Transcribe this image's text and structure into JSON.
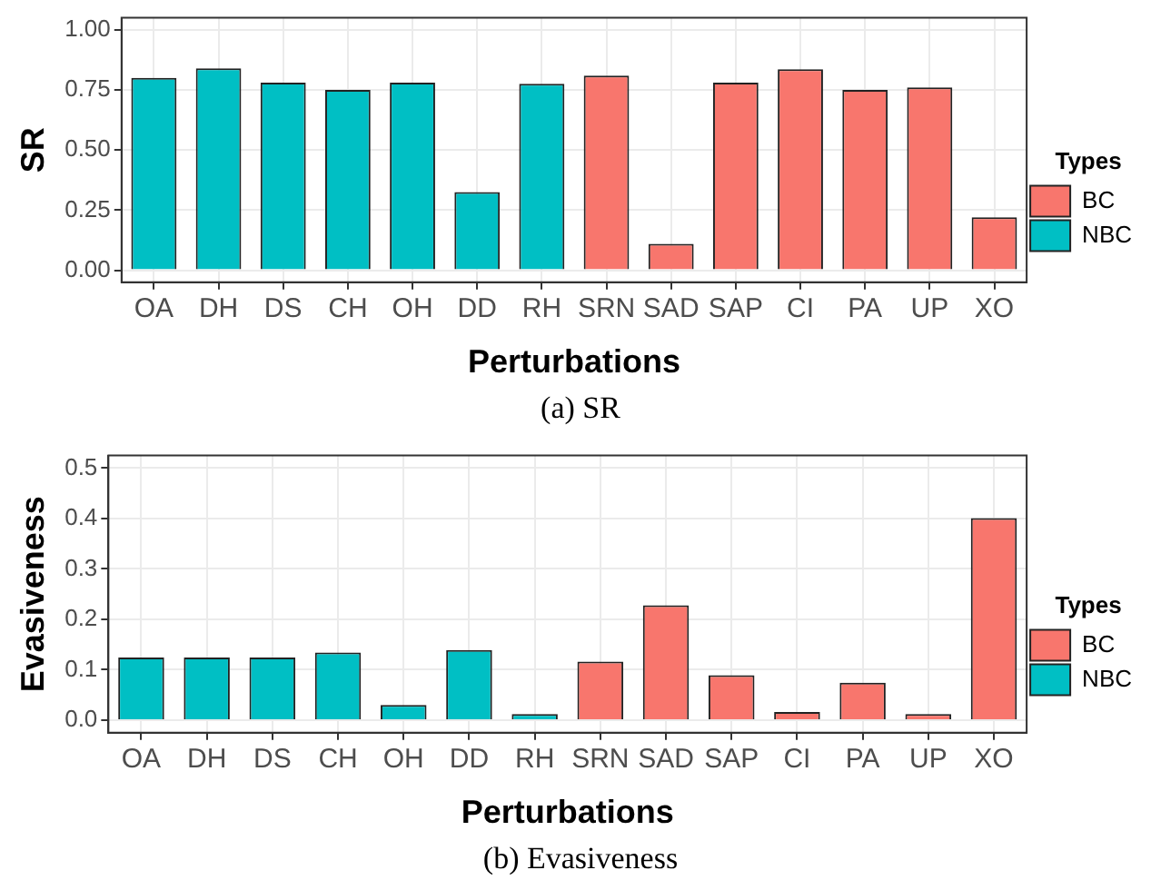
{
  "chart_data": [
    {
      "type": "bar",
      "xlabel": "Perturbations",
      "ylabel": "SR",
      "legend_title": "Types",
      "legend": "right",
      "grid": true,
      "categories": [
        "OA",
        "DH",
        "DS",
        "CH",
        "OH",
        "DD",
        "RH",
        "SRN",
        "SAD",
        "SAP",
        "CI",
        "PA",
        "UP",
        "XO"
      ],
      "series": [
        {
          "name": "BC",
          "color": "#f8766d",
          "values": [
            null,
            null,
            null,
            null,
            null,
            null,
            null,
            0.81,
            0.11,
            0.78,
            0.836,
            0.75,
            0.76,
            0.22
          ]
        },
        {
          "name": "NBC",
          "color": "#00bfc4",
          "values": [
            0.8,
            0.84,
            0.78,
            0.75,
            0.78,
            0.325,
            0.776,
            null,
            null,
            null,
            null,
            null,
            null,
            null
          ]
        }
      ],
      "ylim": [
        -0.05,
        1.05
      ],
      "yticks": [
        {
          "value": 0,
          "label": "0.00"
        },
        0.25,
        {
          "value": 0.5,
          "label": "0.50"
        },
        0.75,
        {
          "value": 1,
          "label": "1.00"
        }
      ],
      "annotations": [
        "(a) SR"
      ]
    },
    {
      "type": "bar",
      "xlabel": "Perturbations",
      "ylabel": "Evasiveness",
      "legend_title": "Types",
      "legend": "right",
      "grid": true,
      "categories": [
        "OA",
        "DH",
        "DS",
        "CH",
        "OH",
        "DD",
        "RH",
        "SRN",
        "SAD",
        "SAP",
        "CI",
        "PA",
        "UP",
        "XO"
      ],
      "series": [
        {
          "name": "BC",
          "color": "#f8766d",
          "values": [
            null,
            null,
            null,
            null,
            null,
            null,
            null,
            0.116,
            0.228,
            0.089,
            0.016,
            0.074,
            0.012,
            0.401
          ]
        },
        {
          "name": "NBC",
          "color": "#00bfc4",
          "values": [
            0.124,
            0.124,
            0.124,
            0.134,
            0.03,
            0.139,
            0.012,
            null,
            null,
            null,
            null,
            null,
            null,
            null
          ]
        }
      ],
      "ylim": [
        -0.025,
        0.525
      ],
      "yticks": [
        {
          "value": 0,
          "label": "0.0"
        },
        0.1,
        0.2,
        0.3,
        0.4,
        0.5
      ],
      "annotations": [
        "(b) Evasiveness"
      ]
    }
  ]
}
